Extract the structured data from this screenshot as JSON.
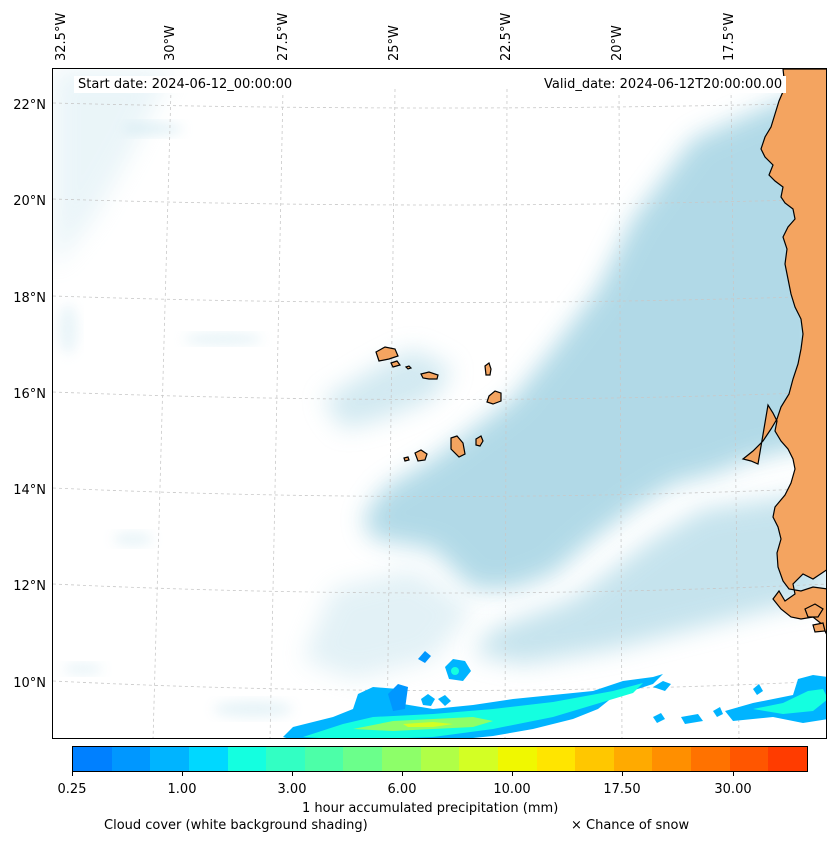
{
  "map": {
    "start_date": "Start date: 2024-06-12_00:00:00",
    "valid_date": "Valid_date: 2024-06-12T20:00:00.00",
    "lon_labels": [
      "32.5°W",
      "30°W",
      "27.5°W",
      "25°W",
      "22.5°W",
      "20°W",
      "17.5°W"
    ],
    "lat_labels": [
      "22°N",
      "20°N",
      "18°N",
      "16°N",
      "14°N",
      "12°N",
      "10°N"
    ],
    "colors": {
      "land": "#f4a460",
      "cloud": "#add8e6",
      "coastline": "#000000",
      "gridline": "#c8c8c8"
    }
  },
  "colorbar": {
    "label": "1 hour accumulated precipitation (mm)",
    "tick_labels": [
      "0.25",
      "1.00",
      "3.00",
      "6.00",
      "10.00",
      "17.50",
      "30.00"
    ],
    "colors": [
      "#0080ff",
      "#0097ff",
      "#00b4ff",
      "#00d8ff",
      "#14ffe0",
      "#32ffc3",
      "#4cffa8",
      "#6bff8b",
      "#8dff69",
      "#b0ff47",
      "#d3ff24",
      "#f0f800",
      "#ffe500",
      "#ffc700",
      "#ffaa00",
      "#ff8f00",
      "#ff7200",
      "#ff5600",
      "#ff3c00"
    ]
  },
  "legend": {
    "cloud_cover": "Cloud cover (white background shading)",
    "snow": "× Chance of snow"
  }
}
